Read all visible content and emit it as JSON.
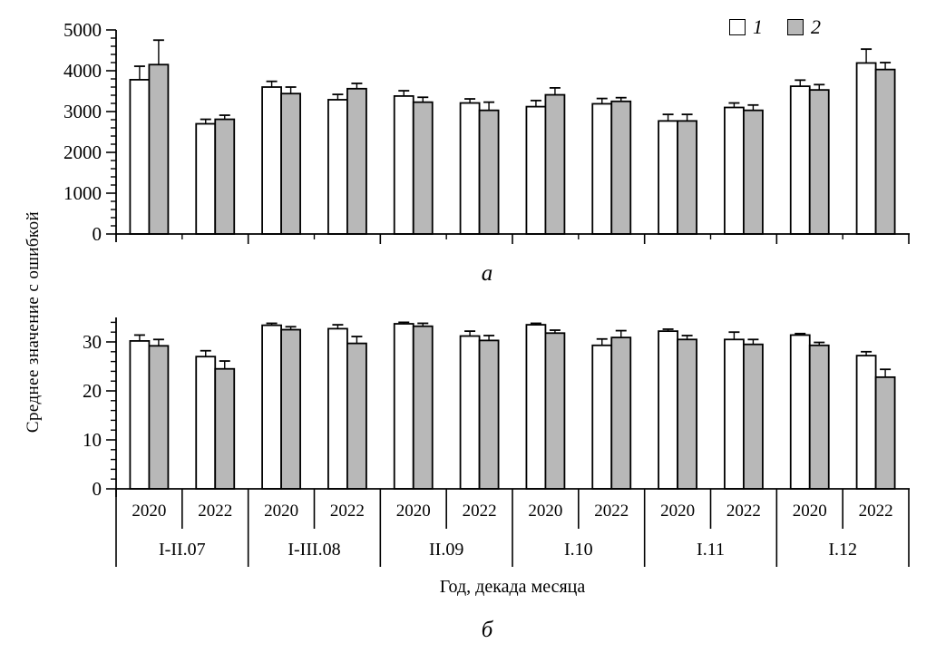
{
  "figure": {
    "y_axis_label": "Среднее значение с ошибкой",
    "x_axis_label": "Год, декада месяца",
    "panel_labels": {
      "a": "а",
      "b": "б"
    }
  },
  "legend": {
    "items": [
      {
        "label": "1",
        "color": "#ffffff"
      },
      {
        "label": "2",
        "color": "#b8b8b8"
      }
    ]
  },
  "chart_data": [
    {
      "type": "bar",
      "panel_label": "а",
      "title": "",
      "xlabel": "Год, декада месяца",
      "ylabel": "Среднее значение с ошибкой",
      "ylim": [
        0,
        5000
      ],
      "yticks": [
        0,
        1000,
        2000,
        3000,
        4000,
        5000
      ],
      "minor_ytick_step": 200,
      "grid": false,
      "legend_position": "top-right-inside",
      "error_bars": "upper",
      "groups": [
        "I-II.07",
        "I-III.08",
        "II.09",
        "I.10",
        "I.11",
        "I.12"
      ],
      "years": [
        "2020",
        "2022"
      ],
      "categories": [
        "I-II.07 2020",
        "I-II.07 2022",
        "I-III.08 2020",
        "I-III.08 2022",
        "II.09 2020",
        "II.09 2022",
        "I.10 2020",
        "I.10 2022",
        "I.11 2020",
        "I.11 2022",
        "I.12 2020",
        "I.12 2022"
      ],
      "series": [
        {
          "name": "1",
          "fill": "#ffffff",
          "values": [
            3780,
            2700,
            3600,
            3290,
            3380,
            3210,
            3120,
            3190,
            2770,
            3100,
            3620,
            4190
          ],
          "errors": [
            330,
            110,
            140,
            130,
            130,
            100,
            150,
            130,
            160,
            110,
            150,
            340
          ]
        },
        {
          "name": "2",
          "fill": "#b8b8b8",
          "values": [
            4150,
            2810,
            3440,
            3560,
            3230,
            3030,
            3410,
            3250,
            2770,
            3030,
            3530,
            4030
          ],
          "errors": [
            600,
            100,
            160,
            130,
            120,
            200,
            170,
            90,
            160,
            130,
            130,
            170
          ]
        }
      ]
    },
    {
      "type": "bar",
      "panel_label": "б",
      "title": "",
      "xlabel": "Год, декада месяца",
      "ylabel": "Среднее значение с ошибкой",
      "ylim": [
        0,
        35
      ],
      "yticks": [
        0,
        10,
        20,
        30
      ],
      "minor_ytick_step": 2,
      "grid": false,
      "legend_position": "none",
      "error_bars": "upper",
      "groups": [
        "I-II.07",
        "I-III.08",
        "II.09",
        "I.10",
        "I.11",
        "I.12"
      ],
      "years": [
        "2020",
        "2022"
      ],
      "categories": [
        "I-II.07 2020",
        "I-II.07 2022",
        "I-III.08 2020",
        "I-III.08 2022",
        "II.09 2020",
        "II.09 2022",
        "I.10 2020",
        "I.10 2022",
        "I.11 2020",
        "I.11 2022",
        "I.12 2020",
        "I.12 2022"
      ],
      "series": [
        {
          "name": "1",
          "fill": "#ffffff",
          "values": [
            30.2,
            27.0,
            33.4,
            32.7,
            33.7,
            31.2,
            33.5,
            29.3,
            32.2,
            30.5,
            31.4,
            27.2
          ],
          "errors": [
            1.2,
            1.2,
            0.4,
            0.8,
            0.3,
            1.0,
            0.3,
            1.3,
            0.4,
            1.5,
            0.3,
            0.8
          ]
        },
        {
          "name": "2",
          "fill": "#b8b8b8",
          "values": [
            29.2,
            24.5,
            32.5,
            29.7,
            33.2,
            30.3,
            31.8,
            30.9,
            30.5,
            29.5,
            29.3,
            22.8
          ],
          "errors": [
            1.3,
            1.6,
            0.6,
            1.4,
            0.6,
            1.0,
            0.6,
            1.4,
            0.8,
            1.0,
            0.6,
            1.6
          ]
        }
      ]
    }
  ]
}
